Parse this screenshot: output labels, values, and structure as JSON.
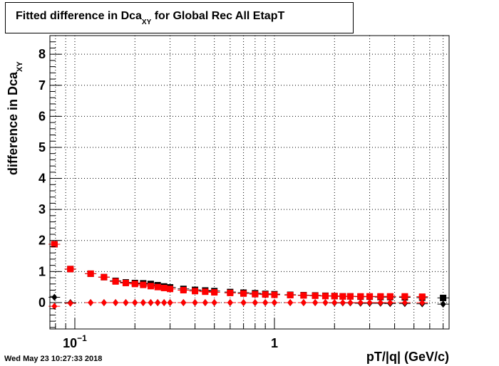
{
  "chart_data": {
    "type": "scatter",
    "title_main": "Fitted difference in Dca",
    "title_sub": "XY",
    "title_rest": " for Global Rec All EtapT",
    "xlabel": "pT/|q| (GeV/c)",
    "ylabel_main": "difference in Dca",
    "ylabel_sub": "XY",
    "xscale": "log",
    "xlim": [
      0.075,
      7.5
    ],
    "ylim": [
      -0.85,
      8.6
    ],
    "yticks": [
      0,
      1,
      2,
      3,
      4,
      5,
      6,
      7,
      8
    ],
    "xticks": [
      {
        "value": 0.1,
        "base": "10",
        "exp": "−1"
      },
      {
        "value": 1,
        "base": "1",
        "exp": ""
      }
    ],
    "grid": true,
    "series": [
      {
        "color": "#000000",
        "marker": "square",
        "x": [
          0.079,
          0.095,
          0.12,
          0.14,
          0.16,
          0.18,
          0.2,
          0.22,
          0.24,
          0.26,
          0.28,
          0.3,
          0.35,
          0.4,
          0.45,
          0.5,
          0.6,
          0.7,
          0.8,
          0.9,
          1.0,
          1.2,
          1.4,
          1.6,
          1.8,
          2.0,
          2.2,
          2.4,
          2.7,
          3.0,
          3.4,
          3.8,
          4.5,
          5.5,
          7.0
        ],
        "y": [
          1.88,
          1.08,
          0.93,
          0.82,
          0.7,
          0.65,
          0.63,
          0.62,
          0.6,
          0.56,
          0.52,
          0.49,
          0.44,
          0.41,
          0.39,
          0.37,
          0.34,
          0.32,
          0.3,
          0.28,
          0.27,
          0.25,
          0.24,
          0.23,
          0.22,
          0.21,
          0.2,
          0.2,
          0.19,
          0.19,
          0.18,
          0.18,
          0.17,
          0.16,
          0.15
        ]
      },
      {
        "color": "#ff0000",
        "marker": "square",
        "x": [
          0.079,
          0.095,
          0.12,
          0.14,
          0.16,
          0.18,
          0.2,
          0.22,
          0.24,
          0.26,
          0.28,
          0.3,
          0.35,
          0.4,
          0.45,
          0.5,
          0.6,
          0.7,
          0.8,
          0.9,
          1.0,
          1.2,
          1.4,
          1.6,
          1.8,
          2.0,
          2.2,
          2.4,
          2.7,
          3.0,
          3.4,
          3.8,
          4.5,
          5.5
        ],
        "y": [
          1.88,
          1.08,
          0.93,
          0.82,
          0.68,
          0.63,
          0.6,
          0.57,
          0.53,
          0.5,
          0.47,
          0.44,
          0.4,
          0.37,
          0.35,
          0.33,
          0.31,
          0.29,
          0.27,
          0.26,
          0.25,
          0.24,
          0.23,
          0.22,
          0.21,
          0.21,
          0.2,
          0.2,
          0.2,
          0.2,
          0.2,
          0.2,
          0.2,
          0.19
        ]
      },
      {
        "color": "#000000",
        "marker": "diamond",
        "x": [
          0.079,
          0.095,
          0.12,
          0.14,
          0.16,
          0.18,
          0.2,
          0.22,
          0.24,
          0.26,
          0.28,
          0.3,
          0.35,
          0.4,
          0.45,
          0.5,
          0.6,
          0.7,
          0.8,
          0.9,
          1.0,
          1.2,
          1.4,
          1.6,
          1.8,
          2.0,
          2.2,
          2.4,
          2.7,
          3.0,
          3.4,
          3.8,
          4.5,
          5.5,
          7.0
        ],
        "y": [
          0.17,
          0.0,
          0.0,
          0.0,
          0.0,
          0.0,
          0.0,
          0.0,
          0.0,
          0.0,
          0.0,
          0.0,
          0.0,
          0.0,
          0.0,
          0.0,
          0.0,
          0.0,
          0.0,
          0.0,
          0.0,
          0.0,
          0.0,
          0.0,
          0.0,
          -0.01,
          -0.01,
          -0.01,
          -0.02,
          -0.02,
          -0.02,
          -0.03,
          -0.03,
          -0.04,
          -0.05
        ]
      },
      {
        "color": "#ff0000",
        "marker": "diamond",
        "x": [
          0.079,
          0.095,
          0.12,
          0.14,
          0.16,
          0.18,
          0.2,
          0.22,
          0.24,
          0.26,
          0.28,
          0.3,
          0.35,
          0.4,
          0.45,
          0.5,
          0.6,
          0.7,
          0.8,
          0.9,
          1.0,
          1.2,
          1.4,
          1.6,
          1.8,
          2.0,
          2.2,
          2.4,
          2.7,
          3.0,
          3.4,
          3.8,
          4.5,
          5.5
        ],
        "y": [
          -0.12,
          -0.02,
          0.0,
          0.0,
          0.0,
          0.0,
          0.0,
          0.0,
          0.0,
          0.0,
          0.0,
          0.0,
          0.0,
          0.0,
          0.0,
          0.0,
          0.0,
          0.0,
          0.0,
          0.0,
          0.0,
          0.0,
          0.0,
          0.0,
          0.0,
          0.0,
          0.0,
          0.0,
          0.0,
          0.0,
          0.0,
          0.0,
          0.0,
          0.0
        ]
      }
    ]
  },
  "timestamp": "Wed May 23 10:27:33 2018"
}
